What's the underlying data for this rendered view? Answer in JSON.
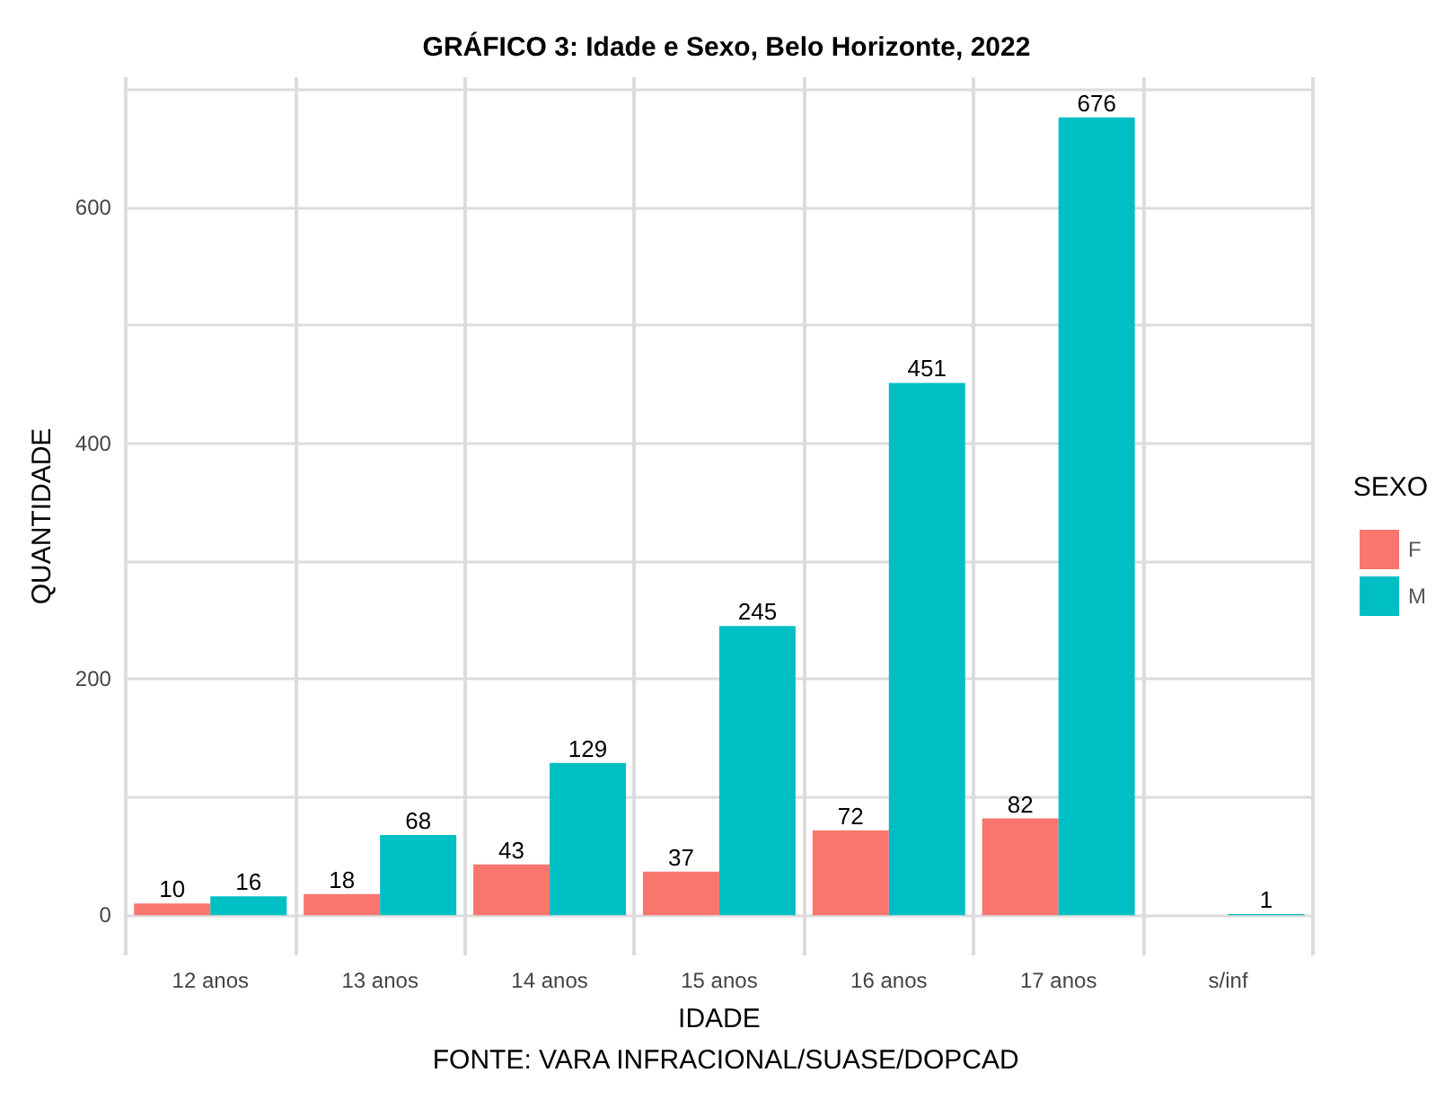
{
  "chart_data": {
    "type": "bar",
    "title": "GRÁFICO 3: Idade e Sexo, Belo Horizonte, 2022",
    "xlabel": "IDADE",
    "ylabel": "QUANTIDADE",
    "legend_title": "SEXO",
    "annotations": [
      "FONTE: VARA INFRACIONAL/SUASE/DOPCAD"
    ],
    "categories": [
      "12 anos",
      "13 anos",
      "14 anos",
      "15 anos",
      "16 anos",
      "17 anos",
      "s/inf"
    ],
    "series": [
      {
        "name": "F",
        "color": "#f8766d",
        "values": [
          10,
          18,
          43,
          37,
          72,
          82,
          null
        ]
      },
      {
        "name": "M",
        "color": "#00bfc4",
        "values": [
          16,
          68,
          129,
          245,
          451,
          676,
          1
        ]
      }
    ],
    "ylim": [
      -34,
      710
    ],
    "yticks": [
      0,
      {
        "value": 100,
        "label": null
      },
      200,
      {
        "value": 300,
        "label": null
      },
      400,
      {
        "value": 500,
        "label": null
      },
      600,
      {
        "value": 700,
        "label": null
      }
    ],
    "grid": true,
    "legend": "right",
    "data_labels": true
  }
}
